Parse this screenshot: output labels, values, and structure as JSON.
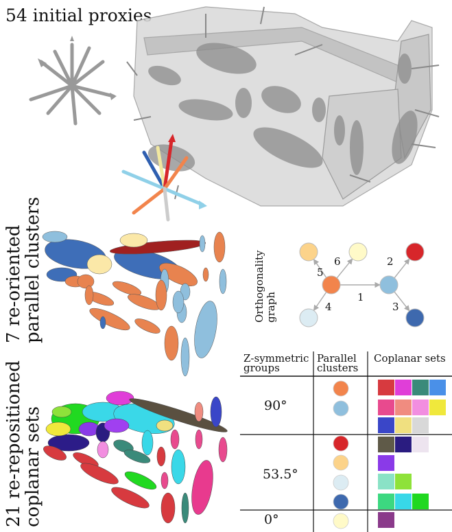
{
  "headings": {
    "initial_proxies": "54 initial proxies",
    "parallel_clusters": [
      "7 re-oriented",
      "parallel clusters"
    ],
    "coplanar_sets": [
      "21 re-repositioned",
      "coplanar sets"
    ]
  },
  "graph": {
    "label": [
      "Orthogonality",
      "graph"
    ],
    "nodes": [
      {
        "id": "A",
        "color": "#fcd38a"
      },
      {
        "id": "B",
        "color": "#fffac8"
      },
      {
        "id": "C",
        "color": "#d7262a"
      },
      {
        "id": "D",
        "color": "#f2844c"
      },
      {
        "id": "E",
        "color": "#8fbfdd"
      },
      {
        "id": "F",
        "color": "#dcecf3"
      },
      {
        "id": "G",
        "color": "#3e69ae"
      }
    ],
    "edges": [
      {
        "from": "D",
        "to": "A",
        "label": "5"
      },
      {
        "from": "D",
        "to": "B",
        "label": "6"
      },
      {
        "from": "E",
        "to": "C",
        "label": "2"
      },
      {
        "from": "D",
        "to": "E",
        "label": "1"
      },
      {
        "from": "D",
        "to": "F",
        "label": "4"
      },
      {
        "from": "E",
        "to": "G",
        "label": "3"
      }
    ]
  },
  "table": {
    "headers": {
      "groups": [
        "Z-symmetric",
        "groups"
      ],
      "clusters": [
        "Parallel",
        "clusters"
      ],
      "sets": "Coplanar sets"
    },
    "groups": [
      {
        "angle": "90°",
        "clusters": [
          {
            "color": "#f2844c",
            "sets": [
              [
                "#d73a3f",
                "#e03ed8",
                "#3a8a7a",
                "#4a90e8"
              ]
            ]
          },
          {
            "color": "#8fbfdd",
            "sets": [
              [
                "#e84a8e",
                "#f08c80",
                "#f28ee0",
                "#f0e83c"
              ],
              [
                "#3a46c8",
                "#f0e080",
                "#d8d8d8"
              ]
            ]
          }
        ]
      },
      {
        "angle": "53.5°",
        "clusters": [
          {
            "color": "#d7262a",
            "sets": [
              [
                "#5f5a48",
                "#2a1c80",
                "#ede4ef"
              ]
            ]
          },
          {
            "color": "#fcd38a",
            "sets": [
              [
                "#8a3ae8"
              ]
            ]
          },
          {
            "color": "#dcecf3",
            "sets": [
              [
                "#8ae2c6",
                "#8ee23a"
              ]
            ]
          },
          {
            "color": "#3e69ae",
            "sets": [
              [
                "#3cd880",
                "#38d8e8",
                "#20d820"
              ]
            ]
          }
        ]
      },
      {
        "angle": "0°",
        "clusters": [
          {
            "color": "#fffac8",
            "sets": [
              [
                "#8a3a8a"
              ]
            ]
          }
        ]
      }
    ]
  }
}
